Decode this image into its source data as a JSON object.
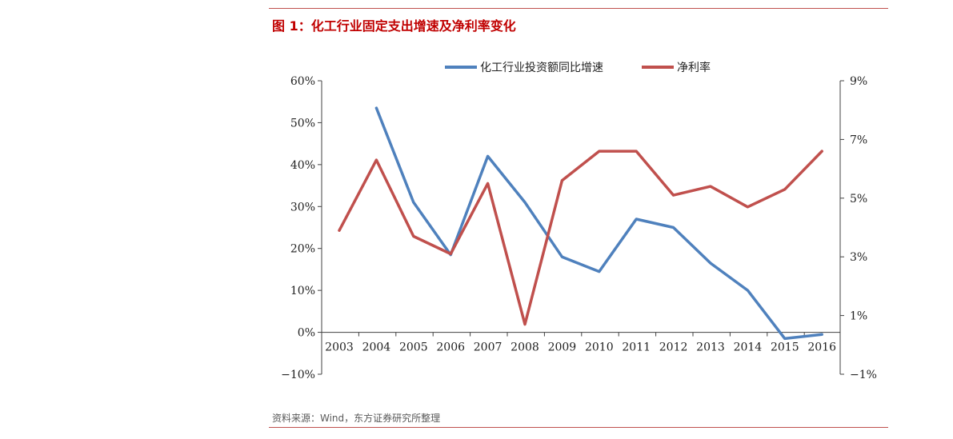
{
  "figure": {
    "title": "图 1：化工行业固定支出增速及净利率变化",
    "source": "资料来源：Wind，东方证券研究所整理"
  },
  "colors": {
    "rule": "#c0504d",
    "title": "#c00000",
    "series_blue": "#4f81bd",
    "series_red": "#c0504d",
    "axis": "#404040"
  },
  "chart_data": {
    "type": "line",
    "title": "",
    "xlabel": "",
    "ylabel": "",
    "categories": [
      "2003",
      "2004",
      "2005",
      "2006",
      "2007",
      "2008",
      "2009",
      "2010",
      "2011",
      "2012",
      "2013",
      "2014",
      "2015",
      "2016"
    ],
    "legend_position": "top",
    "grid": false,
    "y_left": {
      "range": [
        -10,
        60
      ],
      "ticks": [
        60,
        50,
        40,
        30,
        20,
        10,
        0,
        -10
      ],
      "tick_labels": [
        "60%",
        "50%",
        "40%",
        "30%",
        "20%",
        "10%",
        "0%",
        "−10%"
      ]
    },
    "y_right": {
      "range": [
        -1,
        9
      ],
      "ticks": [
        9,
        7,
        5,
        3,
        1,
        -1
      ],
      "tick_labels": [
        "9%",
        "7%",
        "5%",
        "3%",
        "1%",
        "−1%"
      ]
    },
    "series": [
      {
        "name": "化工行业投资额同比增速",
        "axis": "left",
        "color": "#4f81bd",
        "values": [
          null,
          53.5,
          31,
          18.5,
          42,
          31,
          18,
          14.5,
          27,
          25,
          16.5,
          10,
          -1.5,
          -0.5
        ]
      },
      {
        "name": "净利率",
        "axis": "right",
        "color": "#c0504d",
        "values": [
          3.9,
          6.3,
          3.7,
          3.1,
          5.5,
          0.7,
          5.6,
          6.6,
          6.6,
          5.1,
          5.4,
          4.7,
          5.3,
          6.6
        ]
      }
    ]
  }
}
